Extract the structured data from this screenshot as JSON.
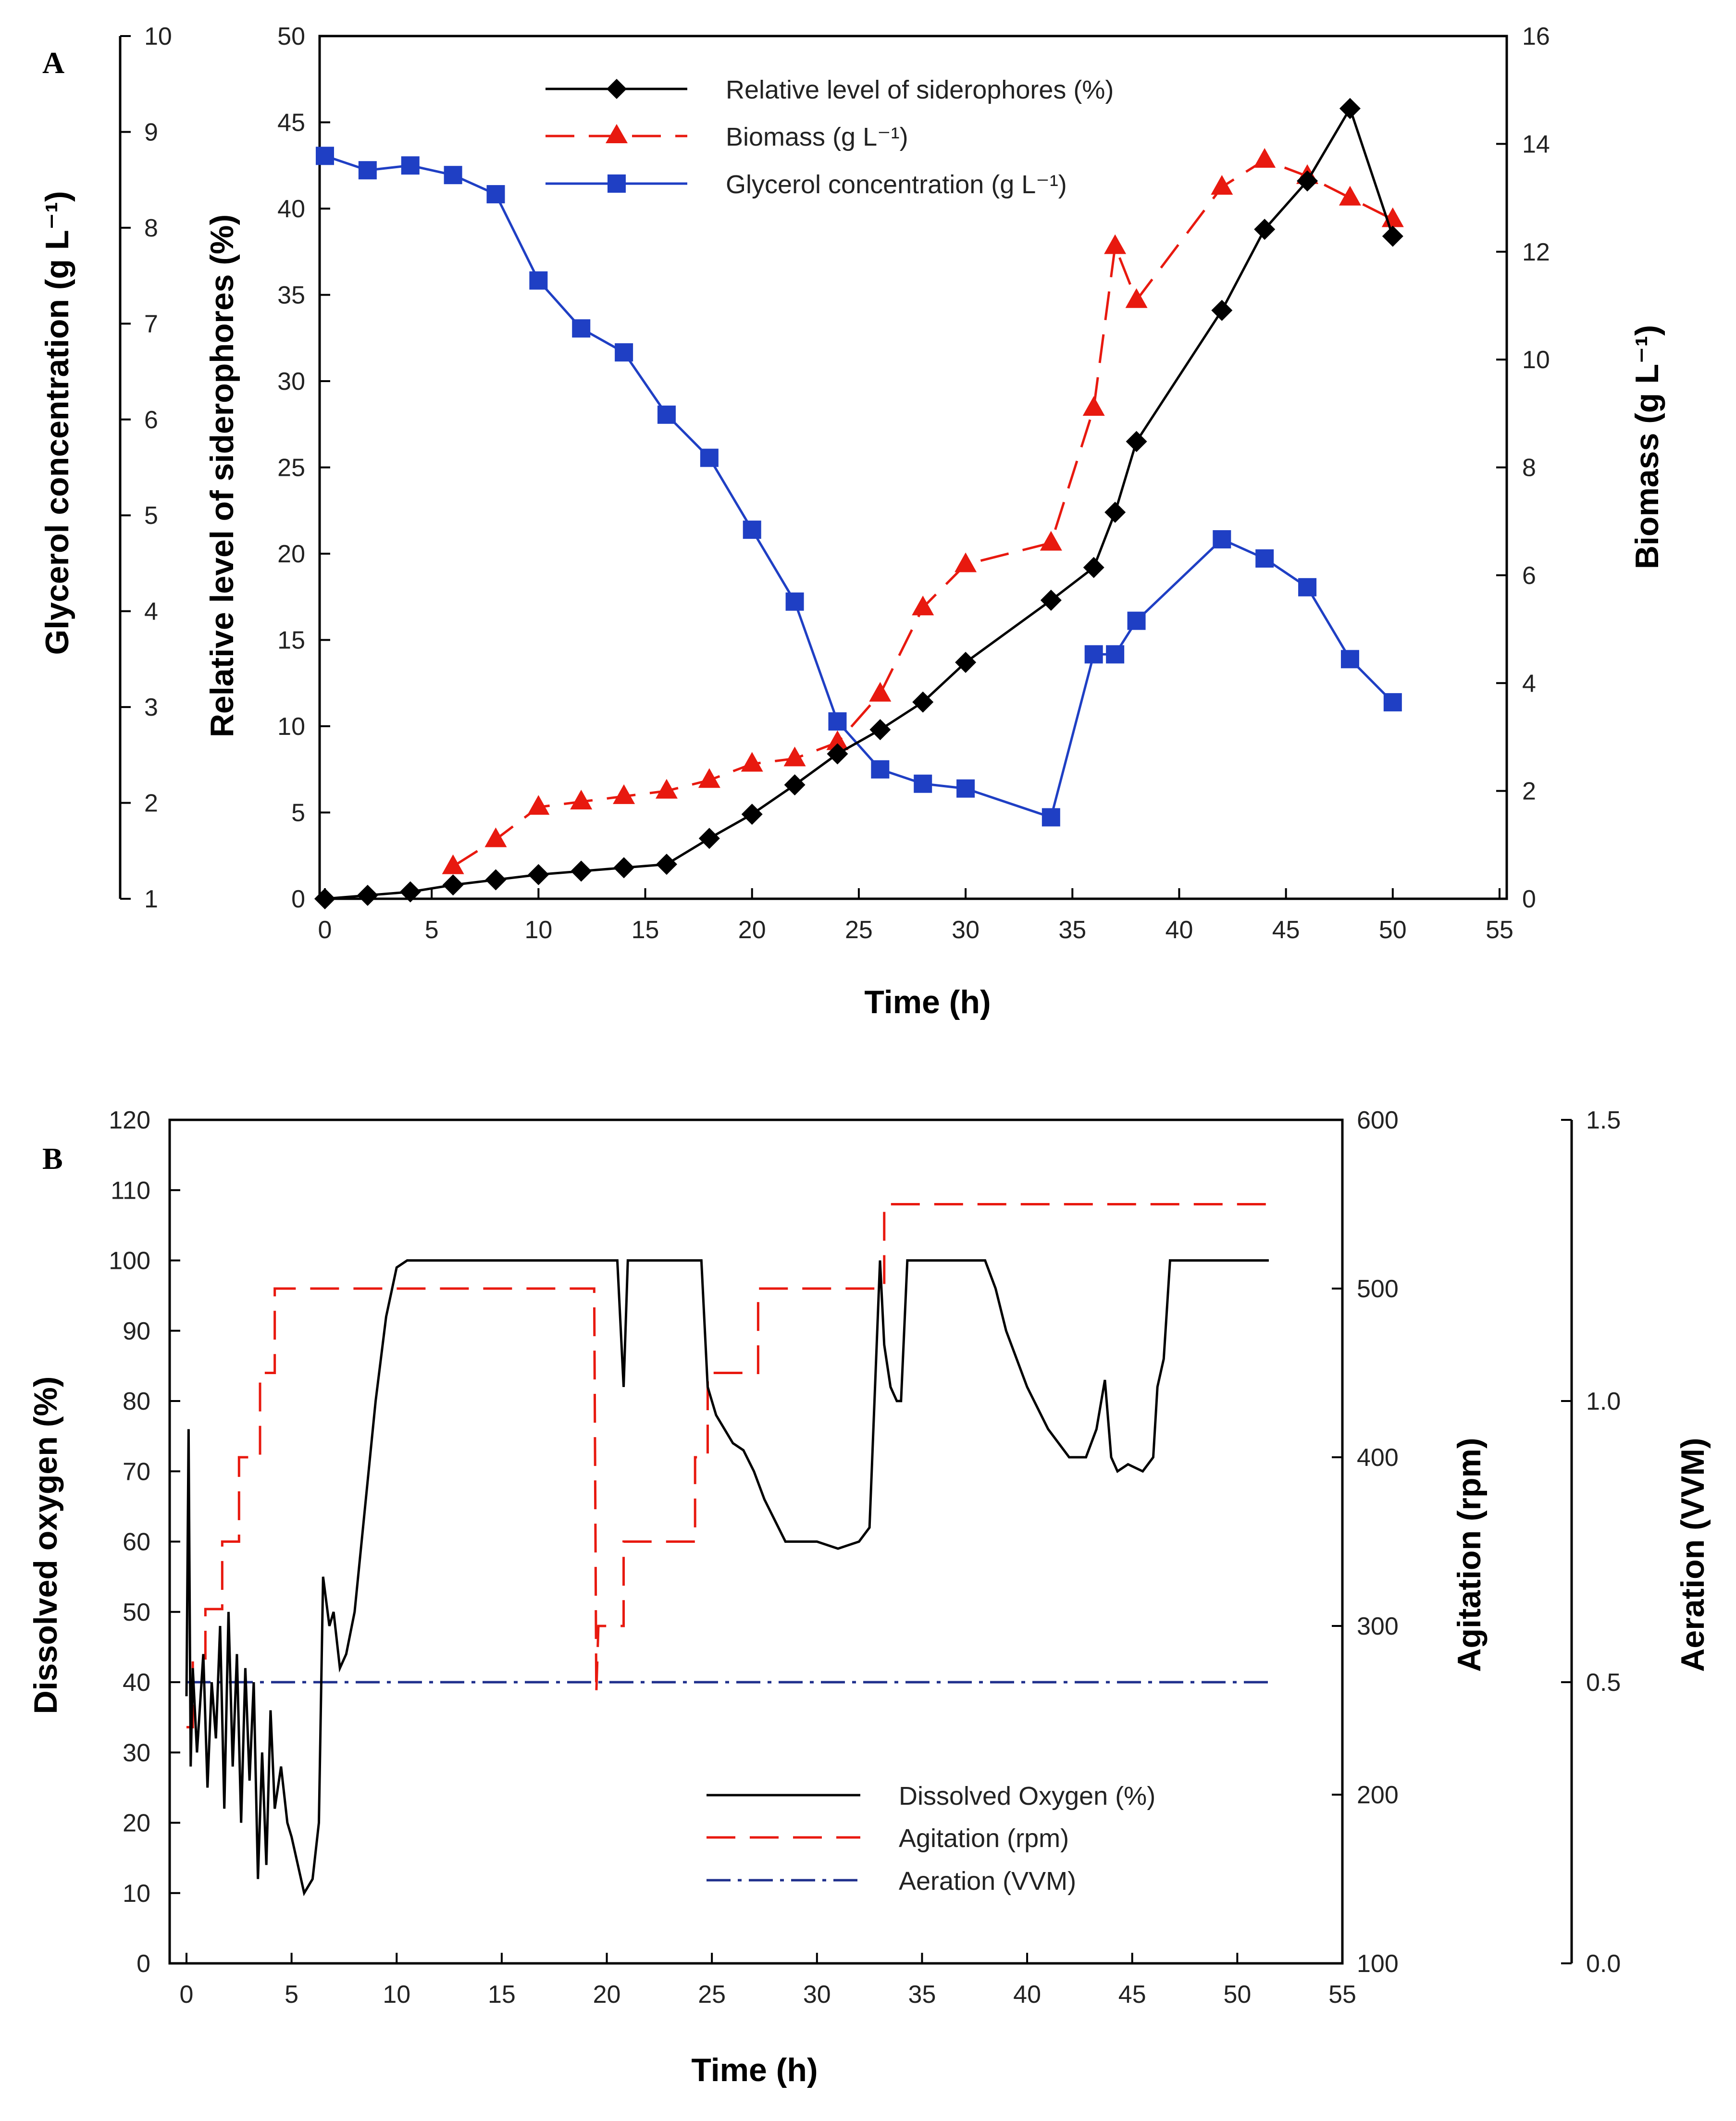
{
  "chart_data": [
    {
      "panel": "A",
      "type": "line",
      "xlabel": "Time (h)",
      "xlim": [
        0,
        55
      ],
      "xticks": [
        0,
        5,
        10,
        15,
        20,
        25,
        30,
        35,
        40,
        45,
        50,
        55
      ],
      "axes": {
        "glycerol": {
          "label": "Glycerol concentration (g L⁻¹)",
          "lim": [
            1,
            10
          ],
          "ticks": [
            1,
            2,
            3,
            4,
            5,
            6,
            7,
            8,
            9,
            10
          ]
        },
        "siderophores": {
          "label": "Relative level of siderophores (%)",
          "lim": [
            0,
            50
          ],
          "ticks": [
            0,
            5,
            10,
            15,
            20,
            25,
            30,
            35,
            40,
            45,
            50
          ]
        },
        "biomass": {
          "label": "Biomass (g L⁻¹)",
          "lim": [
            0,
            16
          ],
          "ticks": [
            0,
            2,
            4,
            6,
            8,
            10,
            12,
            14,
            16
          ]
        }
      },
      "series": [
        {
          "name": "Relative level of siderophores (%)",
          "legend_label": "Relative level of siderophores (%)",
          "axis": "siderophores",
          "color": "#000000",
          "marker": "diamond",
          "dash": "solid",
          "x": [
            0,
            2,
            4,
            6,
            8,
            10,
            12,
            14,
            16,
            18,
            20,
            22,
            24,
            26,
            28,
            30,
            34,
            36,
            37,
            38,
            42,
            44,
            46,
            48,
            50
          ],
          "values": [
            0,
            0.2,
            0.4,
            0.8,
            1.1,
            1.4,
            1.6,
            1.8,
            2.0,
            3.5,
            4.9,
            6.6,
            8.4,
            9.8,
            11.4,
            13.7,
            17.3,
            19.2,
            22.4,
            26.5,
            34.1,
            38.8,
            41.6,
            45.8,
            38.4
          ]
        },
        {
          "name": "Biomass (g L⁻¹)",
          "legend_label": "Biomass (g L⁻¹)",
          "axis": "biomass",
          "color": "#e8190f",
          "marker": "triangle",
          "dash": "long-dash",
          "x": [
            6,
            8,
            10,
            12,
            14,
            16,
            18,
            20,
            22,
            24,
            26,
            28,
            30,
            34,
            36,
            37,
            38,
            42,
            44,
            46,
            48,
            50
          ],
          "values": [
            0.6,
            1.1,
            1.7,
            1.8,
            1.9,
            2.0,
            2.2,
            2.5,
            2.6,
            2.9,
            3.8,
            5.4,
            6.2,
            6.6,
            9.1,
            12.1,
            11.1,
            13.2,
            13.7,
            13.4,
            13.0,
            12.6
          ]
        },
        {
          "name": "Glycerol concentration (g L⁻¹)",
          "legend_label": "Glycerol concentration (g L⁻¹)",
          "axis": "glycerol",
          "color": "#1f3fc4",
          "marker": "square",
          "dash": "solid",
          "x": [
            0,
            2,
            4,
            6,
            8,
            10,
            12,
            14,
            16,
            18,
            20,
            22,
            24,
            26,
            28,
            30,
            34,
            36,
            37,
            38,
            42,
            44,
            46,
            48,
            50
          ],
          "values": [
            8.75,
            8.6,
            8.65,
            8.55,
            8.35,
            7.45,
            6.95,
            6.7,
            6.05,
            5.6,
            4.85,
            4.1,
            2.85,
            2.35,
            2.2,
            2.15,
            1.85,
            3.55,
            3.55,
            3.9,
            4.75,
            4.55,
            4.25,
            3.5,
            3.05
          ]
        }
      ]
    },
    {
      "panel": "B",
      "type": "line",
      "xlabel": "Time (h)",
      "xlim": [
        0,
        55
      ],
      "xticks": [
        0,
        5,
        10,
        15,
        20,
        25,
        30,
        35,
        40,
        45,
        50,
        55
      ],
      "axes": {
        "dissolved_oxygen": {
          "label": "Dissolved oxygen (%)",
          "lim": [
            0,
            120
          ],
          "ticks": [
            0,
            10,
            20,
            30,
            40,
            50,
            60,
            70,
            80,
            90,
            100,
            110,
            120
          ]
        },
        "agitation": {
          "label": "Agitation (rpm)",
          "lim": [
            100,
            600
          ],
          "ticks": [
            100,
            200,
            300,
            400,
            500,
            600
          ]
        },
        "aeration": {
          "label": "Aeration (VVM)",
          "lim": [
            0,
            1.5
          ],
          "ticks": [
            "0.0",
            "0.5",
            "1.0",
            "1.5"
          ]
        }
      },
      "series": [
        {
          "name": "Dissolved Oxygen (%)",
          "legend_label": "Dissolved Oxygen (%)",
          "axis": "dissolved_oxygen",
          "color": "#000000",
          "dash": "solid",
          "x": [
            0,
            0.1,
            0.2,
            0.3,
            0.5,
            0.8,
            1.0,
            1.2,
            1.4,
            1.6,
            1.8,
            2.0,
            2.2,
            2.4,
            2.6,
            2.8,
            3.0,
            3.2,
            3.4,
            3.6,
            3.8,
            4.0,
            4.2,
            4.5,
            4.8,
            5.0,
            5.3,
            5.6,
            6.0,
            6.3,
            6.5,
            6.8,
            7.0,
            7.3,
            7.6,
            8.0,
            8.5,
            9.0,
            9.5,
            10.0,
            10.5,
            20.5,
            20.8,
            21.0,
            21.3,
            21.6,
            24.5,
            24.8,
            25.2,
            26.0,
            26.5,
            27.0,
            27.5,
            28.0,
            28.5,
            29.0,
            30.0,
            31.0,
            32.0,
            32.5,
            33.0,
            33.2,
            33.5,
            33.8,
            34.0,
            34.3,
            34.6,
            35.0,
            38.0,
            38.5,
            39.0,
            40.0,
            41.0,
            42.0,
            42.8,
            43.3,
            43.7,
            44.0,
            44.3,
            44.8,
            45.5,
            46.0,
            46.2,
            46.5,
            46.8,
            51.5
          ],
          "values": [
            38,
            76,
            28,
            42,
            30,
            44,
            25,
            40,
            32,
            48,
            22,
            50,
            28,
            44,
            20,
            42,
            26,
            40,
            12,
            30,
            14,
            36,
            22,
            28,
            20,
            18,
            14,
            10,
            12,
            20,
            55,
            48,
            50,
            42,
            44,
            50,
            65,
            80,
            92,
            99,
            100,
            100,
            82,
            100,
            100,
            100,
            100,
            82,
            78,
            74,
            73,
            70,
            66,
            63,
            60,
            60,
            60,
            59,
            60,
            62,
            100,
            88,
            82,
            80,
            80,
            100,
            100,
            100,
            100,
            96,
            90,
            82,
            76,
            72,
            72,
            76,
            83,
            72,
            70,
            71,
            70,
            72,
            82,
            86,
            100,
            100
          ]
        },
        {
          "name": "Agitation (rpm)",
          "legend_label": "Agitation (rpm)",
          "axis": "agitation",
          "color": "#e8190f",
          "dash": "long-dash",
          "x": [
            0,
            0.3,
            0.3,
            0.9,
            0.9,
            1.7,
            1.7,
            2.5,
            2.5,
            3.5,
            3.5,
            4.2,
            4.2,
            19.4,
            19.5,
            19.6,
            20.8,
            20.8,
            22.0,
            22.0,
            24.2,
            24.2,
            24.8,
            24.8,
            27.2,
            27.2,
            33.2,
            33.2,
            51.5
          ],
          "values": [
            240,
            240,
            280,
            280,
            310,
            310,
            350,
            350,
            400,
            400,
            450,
            450,
            500,
            500,
            260,
            300,
            300,
            350,
            350,
            350,
            350,
            400,
            400,
            450,
            450,
            500,
            500,
            550,
            550
          ]
        },
        {
          "name": "Aeration (VVM)",
          "legend_label": "Aeration (VVM)",
          "axis": "aeration",
          "color": "#1f2f8c",
          "dash": "dash-dot",
          "x": [
            0,
            51.5
          ],
          "values": [
            0.5,
            0.5
          ]
        }
      ]
    }
  ],
  "figure": {
    "panels": [
      {
        "letter": "A"
      },
      {
        "letter": "B"
      }
    ]
  }
}
